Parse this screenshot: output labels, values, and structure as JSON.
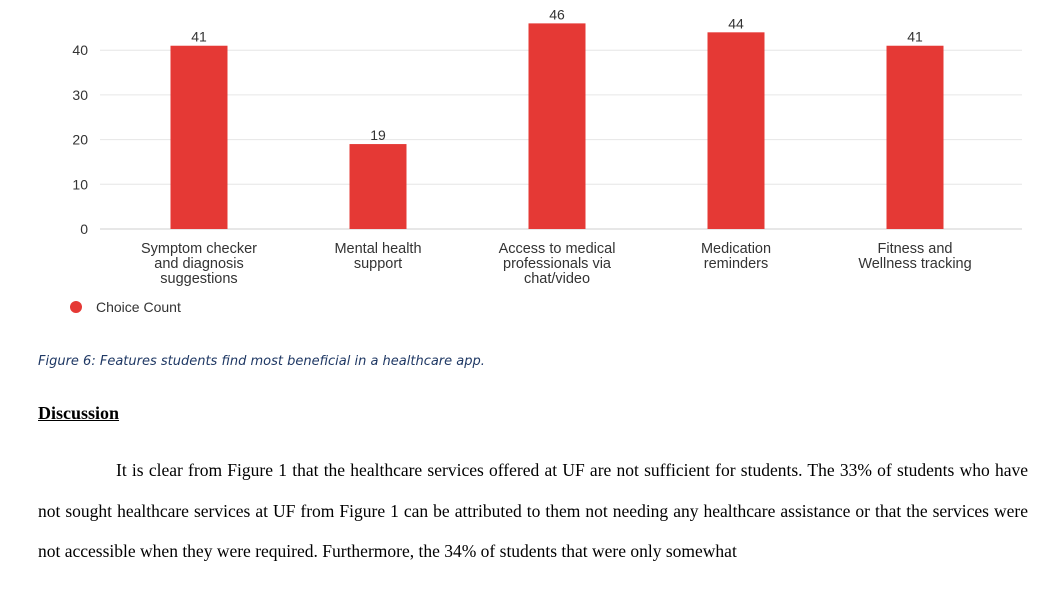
{
  "chart_data": {
    "type": "bar",
    "categories": [
      "Symptom checker and diagnosis suggestions",
      "Mental health support",
      "Access to medical professionals via chat/video",
      "Medication reminders",
      "Fitness and Wellness tracking"
    ],
    "category_lines": [
      [
        "Symptom checker",
        "and diagnosis",
        "suggestions"
      ],
      [
        "Mental health",
        "support"
      ],
      [
        "Access to medical",
        "professionals via",
        "chat/video"
      ],
      [
        "Medication",
        "reminders"
      ],
      [
        "Fitness and",
        "Wellness tracking"
      ]
    ],
    "series": [
      {
        "name": "Choice Count",
        "values": [
          41,
          19,
          46,
          44,
          41
        ],
        "color": "#e53935"
      }
    ],
    "yticks": [
      0,
      10,
      20,
      30,
      40
    ],
    "ylim": [
      0,
      46
    ],
    "grid": true,
    "legend_position": "bottom-left"
  },
  "figure": {
    "caption": "Figure 6: Features students find most beneficial in a healthcare app."
  },
  "discussion": {
    "heading": "Discussion",
    "paragraph": "It is clear from Figure 1 that the healthcare services offered at UF are not sufficient for students. The 33% of students who have not sought healthcare services at UF from Figure 1 can be attributed to them not needing any healthcare assistance or that the services were not accessible when they were required. Furthermore, the 34% of students that were only somewhat"
  }
}
